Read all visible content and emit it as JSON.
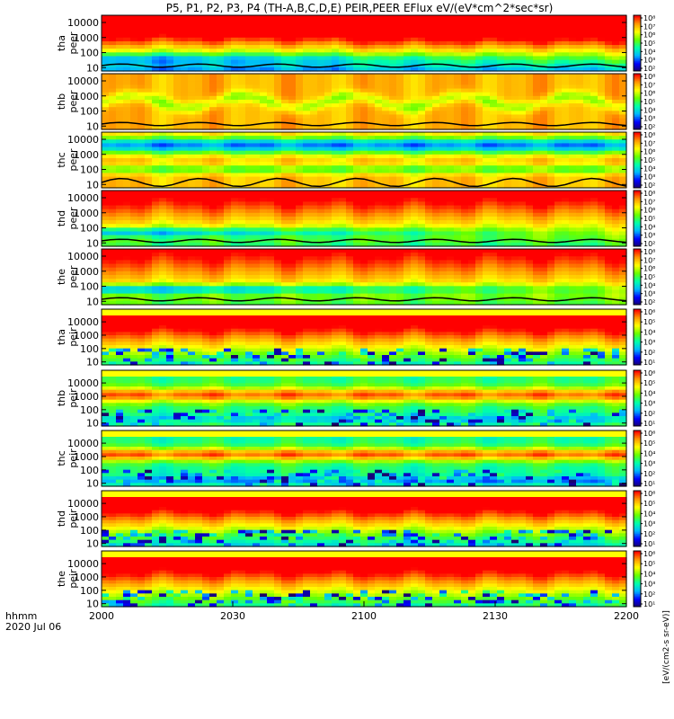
{
  "title": "P5, P1, P2, P3, P4 (TH-A,B,C,D,E) PEIR,PEER EFlux eV/(eV*cm^2*sec*sr)",
  "chart_data": {
    "type": "heatmap",
    "title": "P5, P1, P2, P3, P4 (TH-A,B,C,D,E) PEIR,PEER EFlux eV/(eV*cm^2*sec*sr)",
    "x_axis": {
      "label_line1": "hhmm",
      "label_line2": "2020 Jul 06",
      "ticks": [
        "2000",
        "2030",
        "2100",
        "2130",
        "2200"
      ],
      "tick_hours": [
        0,
        0.5,
        1,
        1.5,
        2
      ]
    },
    "y_axis": {
      "scale": "log",
      "unit": "eV",
      "ticks": [
        "10",
        "100",
        "1000",
        "10000"
      ],
      "tick_values": [
        10,
        100,
        1000,
        10000
      ]
    },
    "colorbar": {
      "scale": "log",
      "ticks_electron": [
        "10²",
        "10³",
        "10⁴",
        "10⁵",
        "10⁶",
        "10⁷",
        "10⁸"
      ],
      "ticks_ion": [
        "10¹",
        "10²",
        "10³",
        "10⁴",
        "10⁵",
        "10⁶"
      ],
      "side_label": "[eV/(cm2-s sr-eV)]",
      "colors": [
        "#1a0066",
        "#0000ff",
        "#00b7ff",
        "#00ffaa",
        "#66ff00",
        "#ffff00",
        "#ff9900",
        "#ff0000"
      ]
    },
    "panels": [
      {
        "label1": "tha",
        "label2": "peer",
        "kind": "electron",
        "profile": "a_e"
      },
      {
        "label1": "thb",
        "label2": "peer",
        "kind": "electron",
        "profile": "b_e"
      },
      {
        "label1": "thc",
        "label2": "peer",
        "kind": "electron",
        "profile": "c_e"
      },
      {
        "label1": "thd",
        "label2": "peer",
        "kind": "electron",
        "profile": "d_e"
      },
      {
        "label1": "the",
        "label2": "peer",
        "kind": "electron",
        "profile": "e_e"
      },
      {
        "label1": "tha",
        "label2": "peir",
        "kind": "ion",
        "profile": "a_i"
      },
      {
        "label1": "thb",
        "label2": "peir",
        "kind": "ion",
        "profile": "b_i"
      },
      {
        "label1": "thc",
        "label2": "peir",
        "kind": "ion",
        "profile": "c_i"
      },
      {
        "label1": "thd",
        "label2": "peir",
        "kind": "ion",
        "profile": "d_i"
      },
      {
        "label1": "the",
        "label2": "peir",
        "kind": "ion",
        "profile": "e_i"
      }
    ]
  }
}
